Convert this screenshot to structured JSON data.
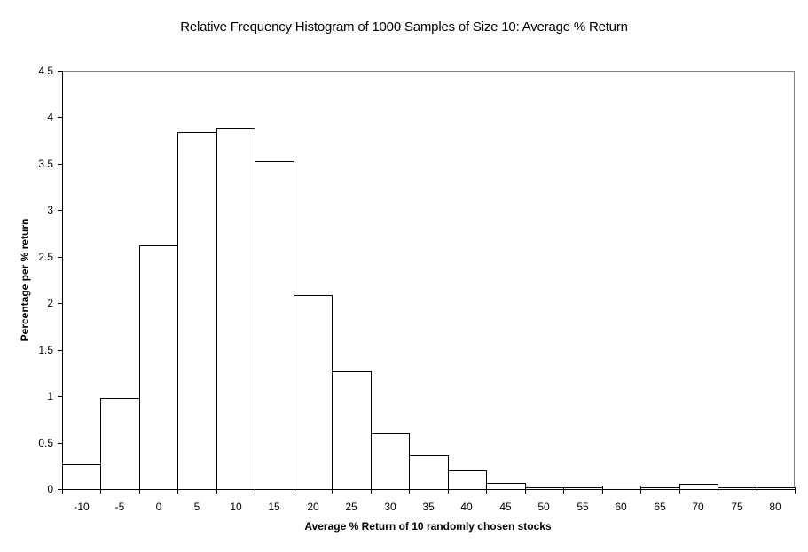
{
  "chart_data": {
    "type": "bar",
    "title": "Relative Frequency Histogram of 1000 Samples of Size 10: Average % Return",
    "xlabel": "Average % Return of 10 randomly chosen stocks",
    "ylabel": "Percentage per % return",
    "categories": [
      "-10",
      "-5",
      "0",
      "5",
      "10",
      "15",
      "20",
      "25",
      "30",
      "35",
      "40",
      "45",
      "50",
      "55",
      "60",
      "65",
      "70",
      "75",
      "80"
    ],
    "values": [
      0.27,
      0.98,
      2.62,
      3.84,
      3.88,
      3.53,
      2.09,
      1.27,
      0.6,
      0.36,
      0.2,
      0.07,
      0.02,
      0.02,
      0.04,
      0.02,
      0.06,
      0.02,
      0.02
    ],
    "ylim": [
      0,
      4.5
    ],
    "yticks": [
      "0",
      "0.5",
      "1",
      "1.5",
      "2",
      "2.5",
      "3",
      "3.5",
      "4",
      "4.5"
    ],
    "grid": false,
    "legend": null,
    "bar_fill": "#ffffff",
    "bar_edge": "#000000",
    "plot_border": "#808080"
  }
}
